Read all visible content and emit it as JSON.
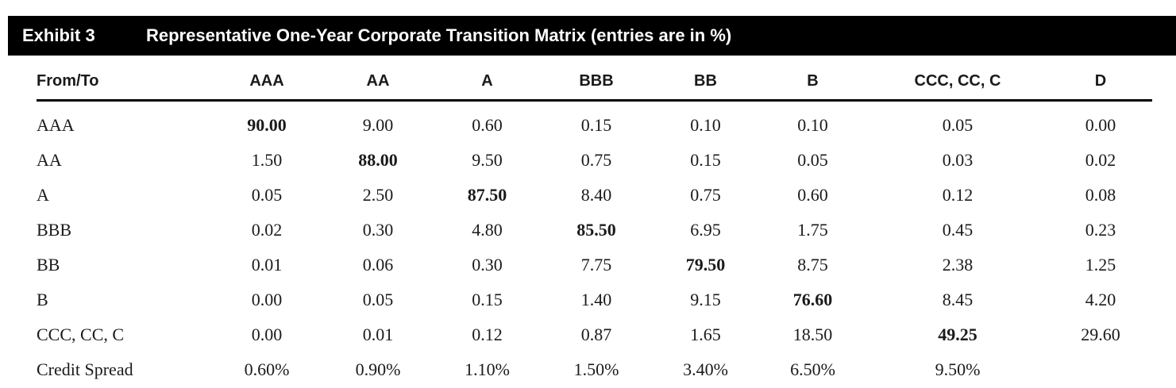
{
  "header": {
    "exhibit_label": "Exhibit 3",
    "title": "Representative One-Year Corporate Transition Matrix (entries are in %)",
    "background_color": "#000000",
    "text_color": "#ffffff"
  },
  "table": {
    "columns": [
      "From/To",
      "AAA",
      "AA",
      "A",
      "BBB",
      "BB",
      "B",
      "CCC, CC, C",
      "D"
    ],
    "rows": [
      {
        "label": "AAA",
        "values": [
          "90.00",
          "9.00",
          "0.60",
          "0.15",
          "0.10",
          "0.10",
          "0.05",
          "0.00"
        ]
      },
      {
        "label": "AA",
        "values": [
          "1.50",
          "88.00",
          "9.50",
          "0.75",
          "0.15",
          "0.05",
          "0.03",
          "0.02"
        ]
      },
      {
        "label": "A",
        "values": [
          "0.05",
          "2.50",
          "87.50",
          "8.40",
          "0.75",
          "0.60",
          "0.12",
          "0.08"
        ]
      },
      {
        "label": "BBB",
        "values": [
          "0.02",
          "0.30",
          "4.80",
          "85.50",
          "6.95",
          "1.75",
          "0.45",
          "0.23"
        ]
      },
      {
        "label": "BB",
        "values": [
          "0.01",
          "0.06",
          "0.30",
          "7.75",
          "79.50",
          "8.75",
          "2.38",
          "1.25"
        ]
      },
      {
        "label": "B",
        "values": [
          "0.00",
          "0.05",
          "0.15",
          "1.40",
          "9.15",
          "76.60",
          "8.45",
          "4.20"
        ]
      },
      {
        "label": "CCC, CC, C",
        "values": [
          "0.00",
          "0.01",
          "0.12",
          "0.87",
          "1.65",
          "18.50",
          "49.25",
          "29.60"
        ]
      },
      {
        "label": "Credit Spread",
        "values": [
          "0.60%",
          "0.90%",
          "1.10%",
          "1.50%",
          "3.40%",
          "6.50%",
          "9.50%",
          ""
        ]
      }
    ]
  }
}
